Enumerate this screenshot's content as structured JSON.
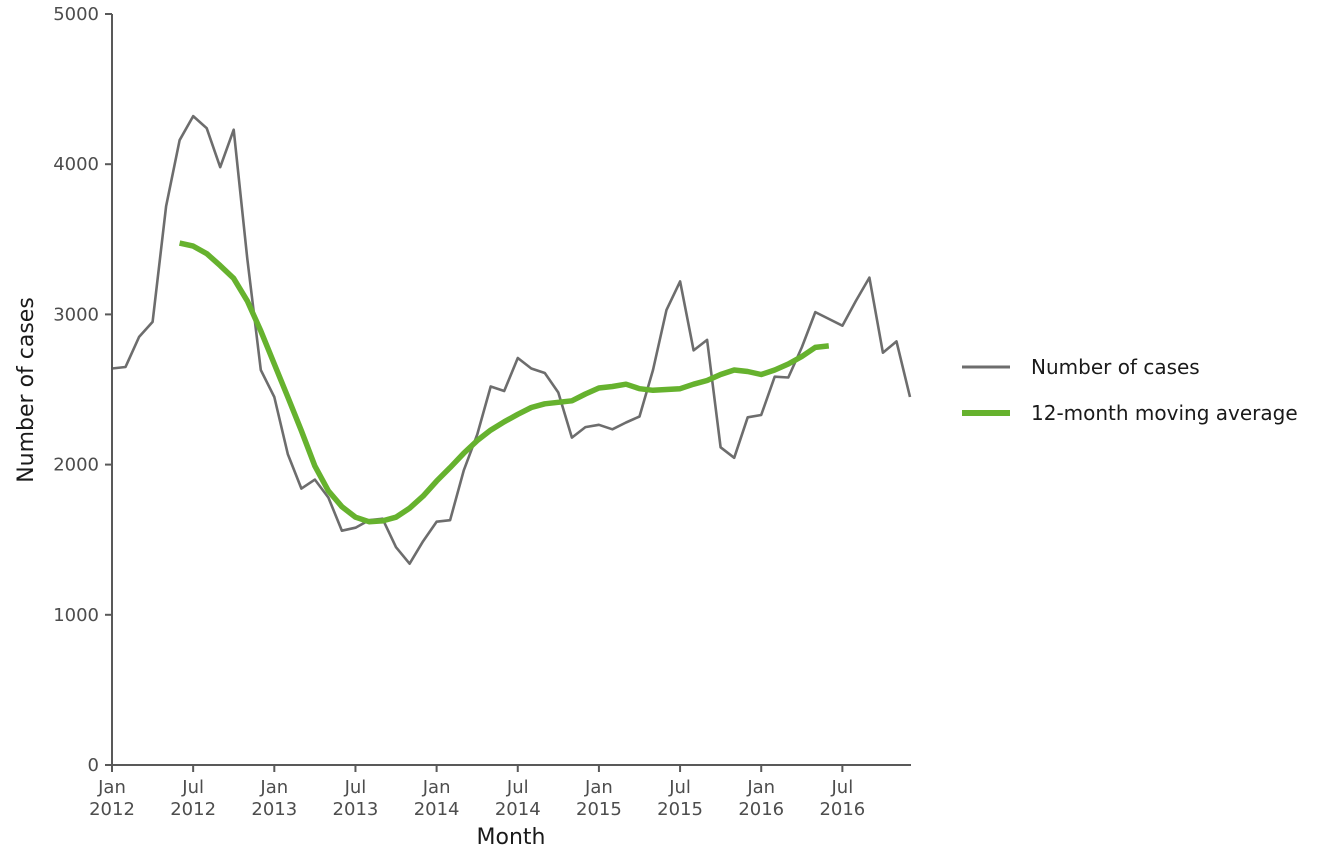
{
  "chart_data": {
    "type": "line",
    "xlabel": "Month",
    "ylabel": "Number of cases",
    "ylim": [
      0,
      5000
    ],
    "yticks": [
      0,
      1000,
      2000,
      3000,
      4000,
      5000
    ],
    "xlim": [
      "2012-01",
      "2016-12"
    ],
    "xticks": [
      {
        "month": "2012-01",
        "line1": "Jan",
        "line2": "2012"
      },
      {
        "month": "2012-07",
        "line1": "Jul",
        "line2": "2012"
      },
      {
        "month": "2013-01",
        "line1": "Jan",
        "line2": "2013"
      },
      {
        "month": "2013-07",
        "line1": "Jul",
        "line2": "2013"
      },
      {
        "month": "2014-01",
        "line1": "Jan",
        "line2": "2014"
      },
      {
        "month": "2014-07",
        "line1": "Jul",
        "line2": "2014"
      },
      {
        "month": "2015-01",
        "line1": "Jan",
        "line2": "2015"
      },
      {
        "month": "2015-07",
        "line1": "Jul",
        "line2": "2015"
      },
      {
        "month": "2016-01",
        "line1": "Jan",
        "line2": "2016"
      },
      {
        "month": "2016-07",
        "line1": "Jul",
        "line2": "2016"
      }
    ],
    "legend_position": "right",
    "grid": false,
    "series": [
      {
        "name": "Number of cases",
        "color": "#6d6d6d",
        "points": [
          [
            "2012-01",
            2640
          ],
          [
            "2012-02",
            2650
          ],
          [
            "2012-03",
            2850
          ],
          [
            "2012-04",
            2950
          ],
          [
            "2012-05",
            3720
          ],
          [
            "2012-06",
            4160
          ],
          [
            "2012-07",
            4320
          ],
          [
            "2012-08",
            4240
          ],
          [
            "2012-09",
            3980
          ],
          [
            "2012-10",
            4230
          ],
          [
            "2012-11",
            3370
          ],
          [
            "2012-12",
            2630
          ],
          [
            "2013-01",
            2450
          ],
          [
            "2013-02",
            2070
          ],
          [
            "2013-03",
            1840
          ],
          [
            "2013-04",
            1900
          ],
          [
            "2013-05",
            1780
          ],
          [
            "2013-06",
            1560
          ],
          [
            "2013-07",
            1580
          ],
          [
            "2013-08",
            1630
          ],
          [
            "2013-09",
            1640
          ],
          [
            "2013-10",
            1450
          ],
          [
            "2013-11",
            1340
          ],
          [
            "2013-12",
            1490
          ],
          [
            "2014-01",
            1620
          ],
          [
            "2014-02",
            1630
          ],
          [
            "2014-03",
            1960
          ],
          [
            "2014-04",
            2200
          ],
          [
            "2014-05",
            2520
          ],
          [
            "2014-06",
            2490
          ],
          [
            "2014-07",
            2710
          ],
          [
            "2014-08",
            2640
          ],
          [
            "2014-09",
            2610
          ],
          [
            "2014-10",
            2480
          ],
          [
            "2014-11",
            2180
          ],
          [
            "2014-12",
            2250
          ],
          [
            "2015-01",
            2265
          ],
          [
            "2015-02",
            2235
          ],
          [
            "2015-03",
            2280
          ],
          [
            "2015-04",
            2320
          ],
          [
            "2015-05",
            2630
          ],
          [
            "2015-06",
            3030
          ],
          [
            "2015-07",
            3220
          ],
          [
            "2015-08",
            2760
          ],
          [
            "2015-09",
            2830
          ],
          [
            "2015-10",
            2115
          ],
          [
            "2015-11",
            2045
          ],
          [
            "2015-12",
            2315
          ],
          [
            "2016-01",
            2330
          ],
          [
            "2016-02",
            2585
          ],
          [
            "2016-03",
            2580
          ],
          [
            "2016-04",
            2780
          ],
          [
            "2016-05",
            3015
          ],
          [
            "2016-06",
            2970
          ],
          [
            "2016-07",
            2925
          ],
          [
            "2016-08",
            3090
          ],
          [
            "2016-09",
            3245
          ],
          [
            "2016-10",
            2745
          ],
          [
            "2016-11",
            2820
          ],
          [
            "2016-12",
            2450
          ]
        ]
      },
      {
        "name": "12-month moving average",
        "color": "#66b22e",
        "points": [
          [
            "2012-06",
            3475
          ],
          [
            "2012-07",
            3455
          ],
          [
            "2012-08",
            3405
          ],
          [
            "2012-09",
            3325
          ],
          [
            "2012-10",
            3240
          ],
          [
            "2012-11",
            3090
          ],
          [
            "2012-12",
            2890
          ],
          [
            "2013-01",
            2670
          ],
          [
            "2013-02",
            2450
          ],
          [
            "2013-03",
            2225
          ],
          [
            "2013-04",
            1990
          ],
          [
            "2013-05",
            1825
          ],
          [
            "2013-06",
            1720
          ],
          [
            "2013-07",
            1650
          ],
          [
            "2013-08",
            1620
          ],
          [
            "2013-09",
            1625
          ],
          [
            "2013-10",
            1650
          ],
          [
            "2013-11",
            1710
          ],
          [
            "2013-12",
            1790
          ],
          [
            "2014-01",
            1890
          ],
          [
            "2014-02",
            1980
          ],
          [
            "2014-03",
            2075
          ],
          [
            "2014-04",
            2160
          ],
          [
            "2014-05",
            2230
          ],
          [
            "2014-06",
            2285
          ],
          [
            "2014-07",
            2335
          ],
          [
            "2014-08",
            2380
          ],
          [
            "2014-09",
            2405
          ],
          [
            "2014-10",
            2415
          ],
          [
            "2014-11",
            2425
          ],
          [
            "2014-12",
            2470
          ],
          [
            "2015-01",
            2510
          ],
          [
            "2015-02",
            2520
          ],
          [
            "2015-03",
            2535
          ],
          [
            "2015-04",
            2505
          ],
          [
            "2015-05",
            2495
          ],
          [
            "2015-06",
            2500
          ],
          [
            "2015-07",
            2505
          ],
          [
            "2015-08",
            2535
          ],
          [
            "2015-09",
            2560
          ],
          [
            "2015-10",
            2600
          ],
          [
            "2015-11",
            2630
          ],
          [
            "2015-12",
            2620
          ],
          [
            "2016-01",
            2600
          ],
          [
            "2016-02",
            2630
          ],
          [
            "2016-03",
            2670
          ],
          [
            "2016-04",
            2720
          ],
          [
            "2016-05",
            2780
          ],
          [
            "2016-06",
            2790
          ]
        ]
      }
    ]
  }
}
